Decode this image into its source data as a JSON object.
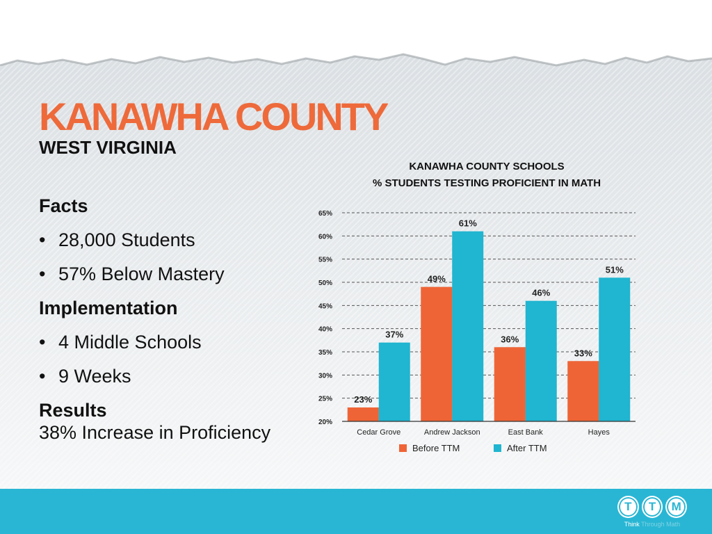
{
  "header": {
    "title": "KANAWHA COUNTY",
    "subtitle": "WEST VIRGINIA"
  },
  "facts": {
    "facts_heading": "Facts",
    "facts_items": [
      "28,000 Students",
      "57% Below Mastery"
    ],
    "implementation_heading": "Implementation",
    "implementation_items": [
      "4 Middle Schools",
      "9 Weeks"
    ],
    "results_heading": "Results",
    "results_text": "38% Increase in Proficiency"
  },
  "colors": {
    "accent": "#ee6a3a",
    "before": "#ef6436",
    "after": "#20b5d0",
    "footer": "#29b6d4"
  },
  "chart_data": {
    "type": "bar",
    "title": "KANAWHA COUNTY SCHOOLS",
    "subtitle": "% STUDENTS TESTING PROFICIENT IN MATH",
    "xlabel": "",
    "ylabel": "",
    "categories": [
      "Cedar Grove",
      "Andrew Jackson",
      "East Bank",
      "Hayes"
    ],
    "series": [
      {
        "name": "Before TTM",
        "values": [
          23,
          49,
          36,
          33
        ],
        "labels": [
          "23%",
          "49%",
          "36%",
          "33%"
        ]
      },
      {
        "name": "After TTM",
        "values": [
          37,
          61,
          46,
          51
        ],
        "labels": [
          "37%",
          "61%",
          "46%",
          "51%"
        ]
      }
    ],
    "ylim": [
      20,
      65
    ],
    "yticks": [
      20,
      25,
      30,
      35,
      40,
      45,
      50,
      55,
      60,
      65
    ],
    "ytick_labels": [
      "20%",
      "25%",
      "30%",
      "35%",
      "40%",
      "45%",
      "50%",
      "55%",
      "60%",
      "65%"
    ],
    "grid": true,
    "legend_position": "bottom"
  },
  "footer": {
    "logo_letters": [
      "T",
      "T",
      "M"
    ],
    "tagline_visible": "Think",
    "tagline_faded": "Through Math"
  }
}
